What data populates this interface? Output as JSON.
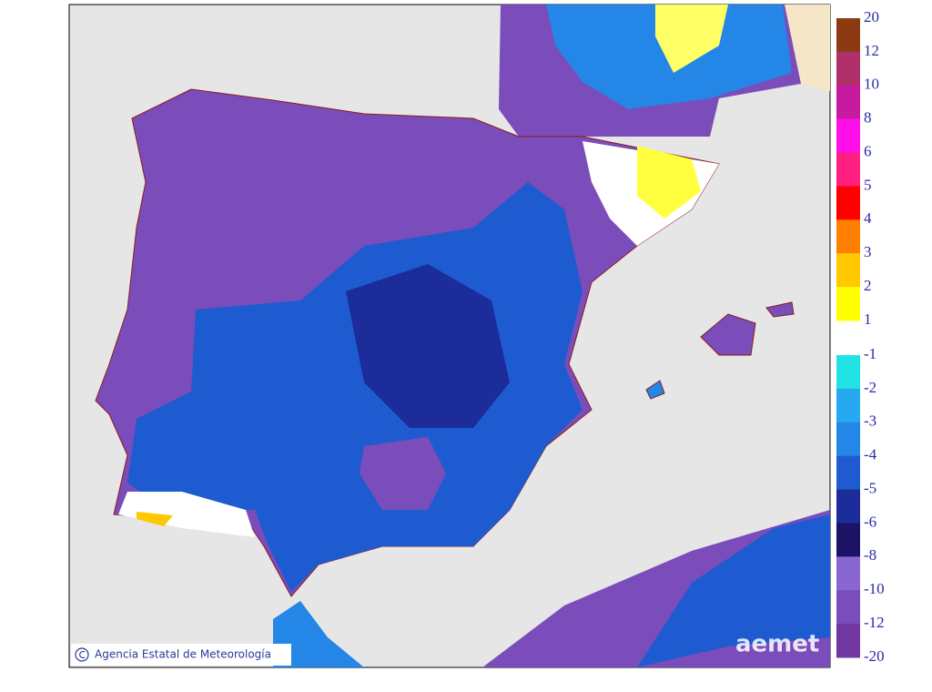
{
  "map": {
    "credit": "Agencia Estatal de Meteorología",
    "logo": "aemet"
  },
  "legend": {
    "positive": {
      "ticks": [
        20,
        12,
        10,
        8,
        6,
        5,
        4,
        3,
        2,
        1
      ],
      "colors": [
        "#8b3a12",
        "#b0306a",
        "#c81aa0",
        "#ff10e8",
        "#ff2080",
        "#ff0000",
        "#ff7f00",
        "#ffc800",
        "#ffff00"
      ]
    },
    "negative": {
      "ticks": [
        -1,
        -2,
        -3,
        -4,
        -5,
        -6,
        -8,
        -10,
        -12,
        -20
      ],
      "colors": [
        "#22e3e3",
        "#26a9f0",
        "#2486e6",
        "#1f5bd0",
        "#1c2c9a",
        "#1b1466",
        "#8a66d2",
        "#7a4dbb",
        "#7038a0"
      ]
    }
  }
}
